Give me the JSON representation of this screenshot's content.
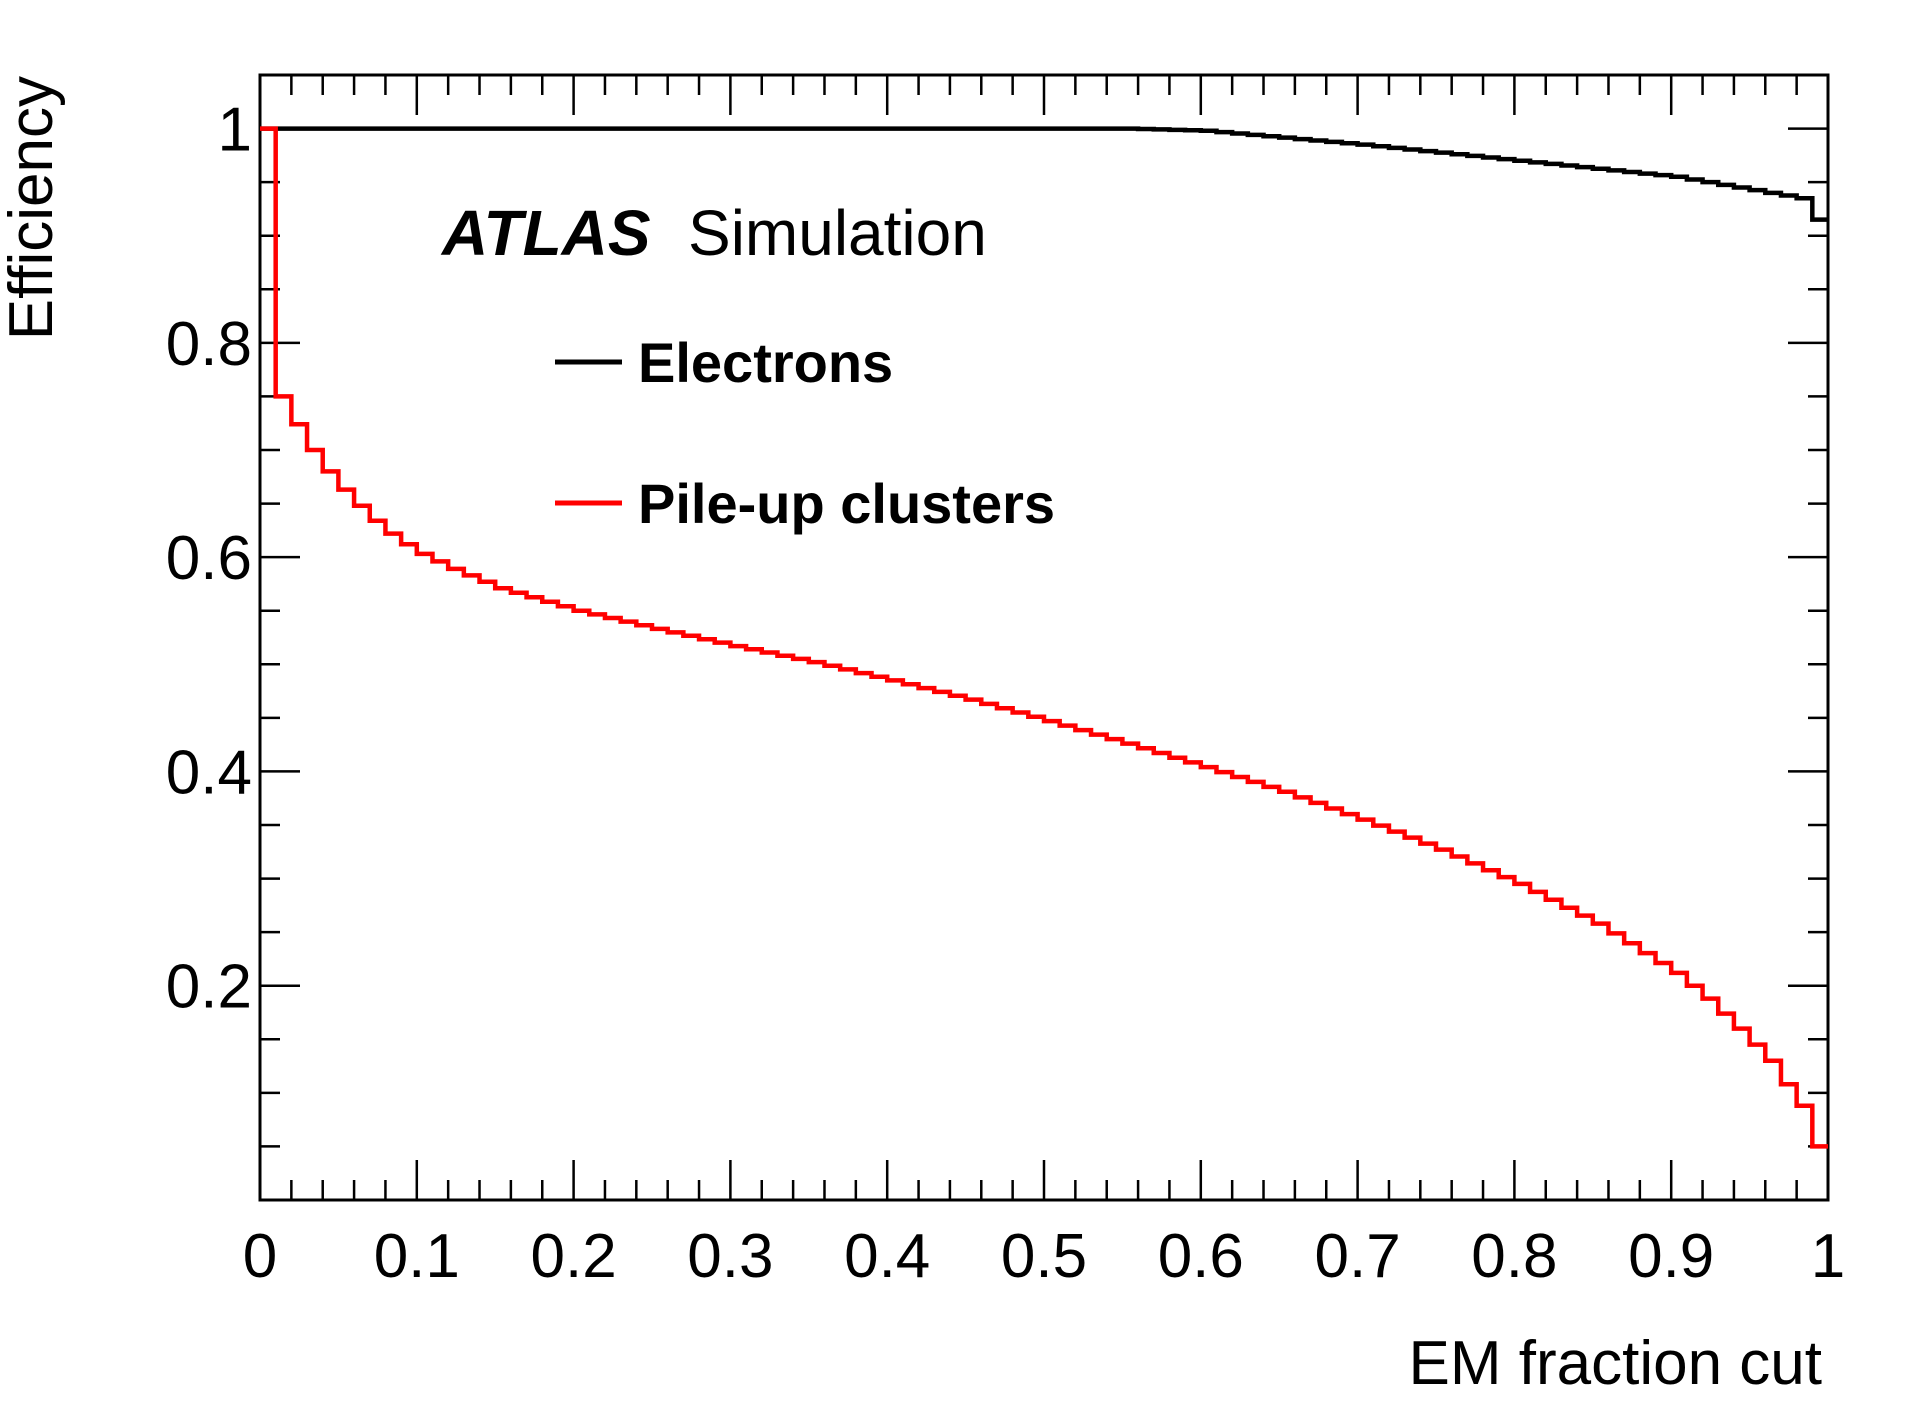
{
  "chart_data": {
    "type": "line",
    "xlabel": "EM fraction cut",
    "ylabel": "Efficiency",
    "xlim": [
      0,
      1
    ],
    "ylim": [
      0,
      1.05
    ],
    "x_ticks": [
      "0",
      "0.1",
      "0.2",
      "0.3",
      "0.4",
      "0.5",
      "0.6",
      "0.7",
      "0.8",
      "0.9",
      "1"
    ],
    "y_ticks": [
      "0.2",
      "0.4",
      "0.6",
      "0.8",
      "1"
    ],
    "annotation": {
      "experiment": "ATLAS",
      "label": "Simulation"
    },
    "legend_position": "top-left",
    "bin_width": 0.01,
    "series": [
      {
        "name": "Electrons",
        "color": "#000000",
        "style": "step",
        "x": [
          0.0,
          0.55,
          0.6,
          0.7,
          0.8,
          0.9,
          0.98,
          0.99,
          1.0
        ],
        "y": [
          1.0,
          1.0,
          0.998,
          0.985,
          0.97,
          0.955,
          0.935,
          0.915,
          0.915
        ]
      },
      {
        "name": "Pile-up clusters",
        "color": "#ff0000",
        "style": "step",
        "x": [
          0.0,
          0.01,
          0.02,
          0.03,
          0.04,
          0.05,
          0.06,
          0.07,
          0.08,
          0.09,
          0.1,
          0.12,
          0.15,
          0.2,
          0.25,
          0.3,
          0.35,
          0.4,
          0.45,
          0.5,
          0.55,
          0.6,
          0.65,
          0.7,
          0.75,
          0.8,
          0.85,
          0.9,
          0.92,
          0.94,
          0.96,
          0.97,
          0.98,
          0.99,
          1.0
        ],
        "y": [
          1.0,
          0.75,
          0.724,
          0.7,
          0.68,
          0.663,
          0.648,
          0.634,
          0.622,
          0.612,
          0.603,
          0.589,
          0.571,
          0.55,
          0.533,
          0.517,
          0.502,
          0.485,
          0.467,
          0.447,
          0.426,
          0.404,
          0.381,
          0.355,
          0.327,
          0.295,
          0.258,
          0.212,
          0.188,
          0.16,
          0.13,
          0.108,
          0.088,
          0.05,
          0.05
        ]
      }
    ]
  }
}
